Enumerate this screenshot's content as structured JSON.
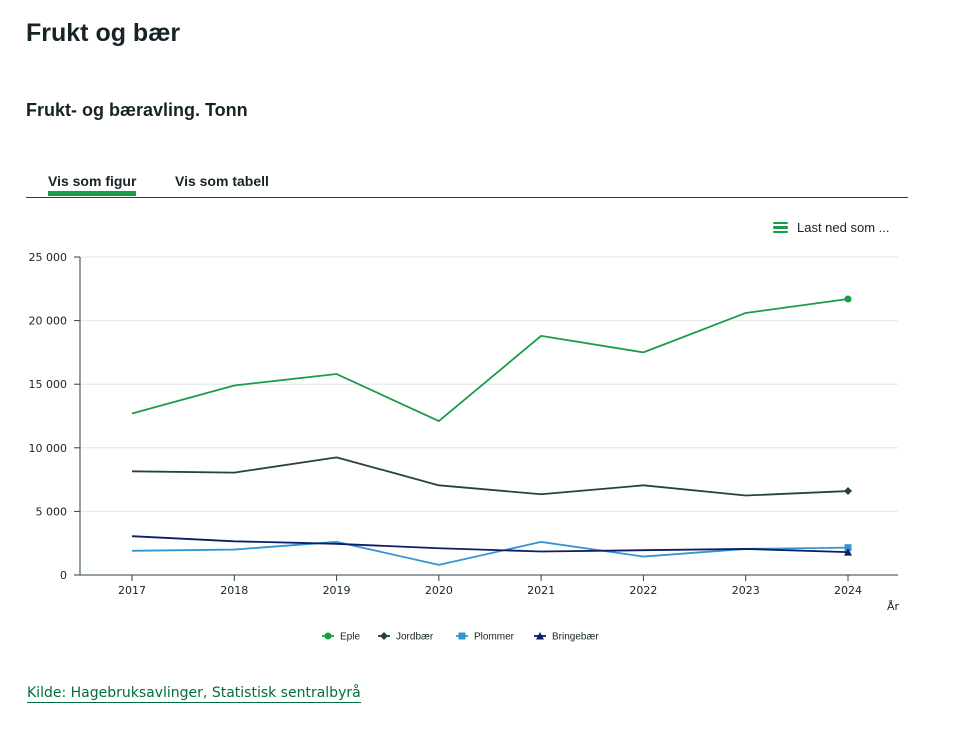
{
  "page": {
    "title": "Frukt og bær",
    "chart_heading": "Frukt- og bæravling. Tonn"
  },
  "tabs": [
    {
      "label": "Vis som figur",
      "active": true
    },
    {
      "label": "Vis som tabell",
      "active": false
    }
  ],
  "download": {
    "label": "Last ned som ...",
    "icon": "menu-icon"
  },
  "source": {
    "label": "Kilde: Hagebruksavlinger, Statistisk sentralbyrå"
  },
  "colors": {
    "accent": "#1a9d49",
    "text": "#162327",
    "link": "#006f3c"
  },
  "chart_data": {
    "type": "line",
    "title": "Frukt- og bæravling. Tonn",
    "xlabel": "År",
    "ylabel": "",
    "x": [
      "2017",
      "2018",
      "2019",
      "2020",
      "2021",
      "2022",
      "2023",
      "2024"
    ],
    "ylim": [
      0,
      25000
    ],
    "yticks": [
      0,
      5000,
      10000,
      15000,
      20000,
      25000
    ],
    "ytick_labels": [
      "0",
      "5 000",
      "10 000",
      "15 000",
      "20 000",
      "25 000"
    ],
    "grid": true,
    "legend_position": "bottom-center",
    "series": [
      {
        "name": "Eple",
        "color": "#1a9d49",
        "marker": "circle",
        "values": [
          12700,
          14900,
          15800,
          12100,
          18800,
          17500,
          20600,
          21700
        ]
      },
      {
        "name": "Jordbær",
        "color": "#274247",
        "marker": "diamond",
        "values": [
          8150,
          8050,
          9250,
          7050,
          6350,
          7050,
          6250,
          6600
        ]
      },
      {
        "name": "Plommer",
        "color": "#3396d2",
        "marker": "square",
        "values": [
          1900,
          2000,
          2600,
          800,
          2600,
          1450,
          2050,
          2150
        ]
      },
      {
        "name": "Bringebær",
        "color": "#0e1d66",
        "marker": "triangle",
        "values": [
          3050,
          2650,
          2450,
          2100,
          1850,
          1950,
          2050,
          1800
        ]
      }
    ]
  }
}
